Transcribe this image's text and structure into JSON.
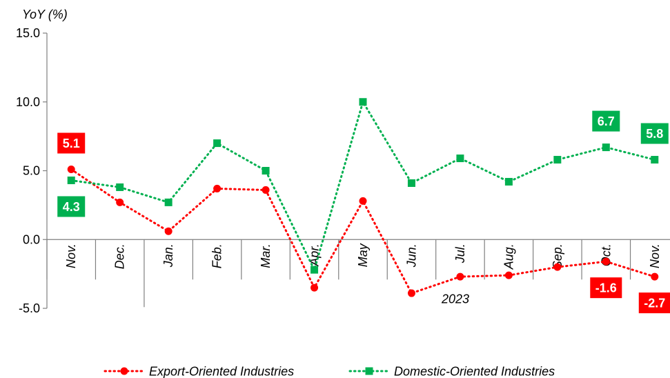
{
  "chart_data": {
    "type": "line",
    "title": "",
    "ylabel": "YoY (%)",
    "xlabel": "",
    "ylim": [
      -5,
      15
    ],
    "yticks": [
      "15.0",
      "10.0",
      "5.0",
      "0.0",
      "-5.0"
    ],
    "categories": [
      "Nov.",
      "Dec.",
      "Jan.",
      "Feb.",
      "Mar.",
      "Apr.",
      "May",
      "Jun.",
      "Jul.",
      "Aug.",
      "Sep.",
      "Oct.",
      "Nov."
    ],
    "year_label": "2023",
    "legend_position": "bottom",
    "series": [
      {
        "name": "Export-Oriented Industries",
        "color": "#ff0000",
        "marker": "circle",
        "values": [
          5.1,
          2.7,
          0.6,
          3.7,
          3.6,
          -3.5,
          2.8,
          -3.9,
          -2.7,
          -2.6,
          -2.0,
          -1.6,
          -2.7
        ]
      },
      {
        "name": "Domestic-Oriented Industries",
        "color": "#00b050",
        "marker": "square",
        "values": [
          4.3,
          3.8,
          2.7,
          7.0,
          5.0,
          -2.2,
          10.0,
          4.1,
          5.9,
          4.2,
          5.8,
          6.7,
          5.8
        ]
      }
    ],
    "data_labels": [
      {
        "series": 0,
        "index": 0,
        "text": "5.1",
        "pos": "above"
      },
      {
        "series": 1,
        "index": 0,
        "text": "4.3",
        "pos": "below"
      },
      {
        "series": 1,
        "index": 11,
        "text": "6.7",
        "pos": "above"
      },
      {
        "series": 1,
        "index": 12,
        "text": "5.8",
        "pos": "above"
      },
      {
        "series": 0,
        "index": 11,
        "text": "-1.6",
        "pos": "below"
      },
      {
        "series": 0,
        "index": 12,
        "text": "-2.7",
        "pos": "below"
      }
    ]
  }
}
